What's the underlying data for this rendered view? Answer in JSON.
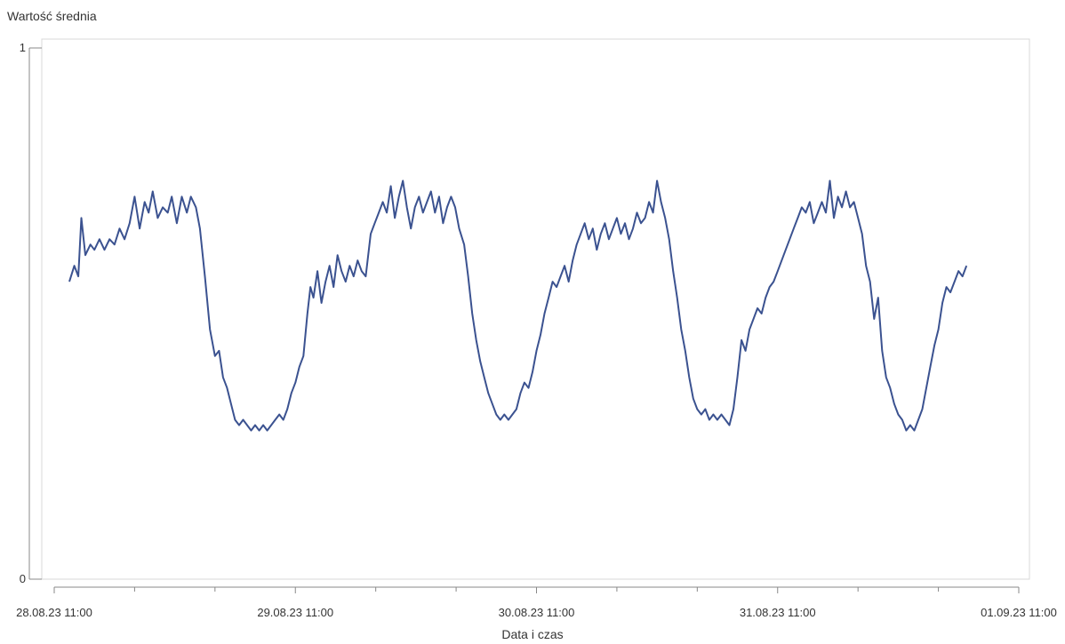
{
  "chart_data": {
    "type": "line",
    "ylabel": "Wartość średnia",
    "xlabel": "Data i czas",
    "ylim": [
      0,
      1
    ],
    "y_ticks": [
      "0",
      "1"
    ],
    "x_ticks": [
      "28.08.23 11:00",
      "29.08.23 11:00",
      "30.08.23 11:00",
      "31.08.23 11:00",
      "01.09.23 11:00"
    ],
    "xlim_hours": [
      0,
      96
    ],
    "grid": false,
    "color": "#3b5290",
    "series": [
      {
        "points": [
          [
            1.5,
            0.56
          ],
          [
            2.0,
            0.59
          ],
          [
            2.4,
            0.57
          ],
          [
            2.7,
            0.68
          ],
          [
            3.1,
            0.61
          ],
          [
            3.6,
            0.63
          ],
          [
            4.0,
            0.62
          ],
          [
            4.5,
            0.64
          ],
          [
            5.0,
            0.62
          ],
          [
            5.5,
            0.64
          ],
          [
            6.0,
            0.63
          ],
          [
            6.5,
            0.66
          ],
          [
            7.0,
            0.64
          ],
          [
            7.5,
            0.67
          ],
          [
            8.0,
            0.72
          ],
          [
            8.5,
            0.66
          ],
          [
            9.0,
            0.71
          ],
          [
            9.4,
            0.69
          ],
          [
            9.8,
            0.73
          ],
          [
            10.3,
            0.68
          ],
          [
            10.8,
            0.7
          ],
          [
            11.3,
            0.69
          ],
          [
            11.7,
            0.72
          ],
          [
            12.2,
            0.67
          ],
          [
            12.7,
            0.72
          ],
          [
            13.2,
            0.69
          ],
          [
            13.6,
            0.72
          ],
          [
            14.1,
            0.7
          ],
          [
            14.5,
            0.66
          ],
          [
            15.0,
            0.57
          ],
          [
            15.5,
            0.47
          ],
          [
            16.0,
            0.42
          ],
          [
            16.4,
            0.43
          ],
          [
            16.8,
            0.38
          ],
          [
            17.2,
            0.36
          ],
          [
            17.6,
            0.33
          ],
          [
            18.0,
            0.3
          ],
          [
            18.4,
            0.29
          ],
          [
            18.8,
            0.3
          ],
          [
            19.2,
            0.29
          ],
          [
            19.6,
            0.28
          ],
          [
            20.0,
            0.29
          ],
          [
            20.4,
            0.28
          ],
          [
            20.8,
            0.29
          ],
          [
            21.2,
            0.28
          ],
          [
            21.6,
            0.29
          ],
          [
            22.0,
            0.3
          ],
          [
            22.4,
            0.31
          ],
          [
            22.8,
            0.3
          ],
          [
            23.2,
            0.32
          ],
          [
            23.6,
            0.35
          ],
          [
            24.0,
            0.37
          ],
          [
            24.4,
            0.4
          ],
          [
            24.8,
            0.42
          ],
          [
            25.2,
            0.5
          ],
          [
            25.5,
            0.55
          ],
          [
            25.8,
            0.53
          ],
          [
            26.2,
            0.58
          ],
          [
            26.6,
            0.52
          ],
          [
            27.0,
            0.56
          ],
          [
            27.4,
            0.59
          ],
          [
            27.8,
            0.55
          ],
          [
            28.2,
            0.61
          ],
          [
            28.6,
            0.58
          ],
          [
            29.0,
            0.56
          ],
          [
            29.4,
            0.59
          ],
          [
            29.8,
            0.57
          ],
          [
            30.2,
            0.6
          ],
          [
            30.6,
            0.58
          ],
          [
            31.0,
            0.57
          ],
          [
            31.5,
            0.65
          ],
          [
            31.9,
            0.67
          ],
          [
            32.3,
            0.69
          ],
          [
            32.7,
            0.71
          ],
          [
            33.1,
            0.69
          ],
          [
            33.5,
            0.74
          ],
          [
            33.9,
            0.68
          ],
          [
            34.3,
            0.72
          ],
          [
            34.7,
            0.75
          ],
          [
            35.1,
            0.7
          ],
          [
            35.5,
            0.66
          ],
          [
            35.9,
            0.7
          ],
          [
            36.3,
            0.72
          ],
          [
            36.7,
            0.69
          ],
          [
            37.1,
            0.71
          ],
          [
            37.5,
            0.73
          ],
          [
            37.9,
            0.69
          ],
          [
            38.3,
            0.72
          ],
          [
            38.7,
            0.67
          ],
          [
            39.1,
            0.7
          ],
          [
            39.5,
            0.72
          ],
          [
            39.9,
            0.7
          ],
          [
            40.3,
            0.66
          ],
          [
            40.8,
            0.63
          ],
          [
            41.2,
            0.57
          ],
          [
            41.6,
            0.5
          ],
          [
            42.0,
            0.45
          ],
          [
            42.4,
            0.41
          ],
          [
            42.8,
            0.38
          ],
          [
            43.2,
            0.35
          ],
          [
            43.6,
            0.33
          ],
          [
            44.0,
            0.31
          ],
          [
            44.4,
            0.3
          ],
          [
            44.8,
            0.31
          ],
          [
            45.2,
            0.3
          ],
          [
            45.6,
            0.31
          ],
          [
            46.0,
            0.32
          ],
          [
            46.4,
            0.35
          ],
          [
            46.8,
            0.37
          ],
          [
            47.2,
            0.36
          ],
          [
            47.6,
            0.39
          ],
          [
            48.0,
            0.43
          ],
          [
            48.4,
            0.46
          ],
          [
            48.8,
            0.5
          ],
          [
            49.2,
            0.53
          ],
          [
            49.6,
            0.56
          ],
          [
            50.0,
            0.55
          ],
          [
            50.4,
            0.57
          ],
          [
            50.8,
            0.59
          ],
          [
            51.2,
            0.56
          ],
          [
            51.6,
            0.6
          ],
          [
            52.0,
            0.63
          ],
          [
            52.4,
            0.65
          ],
          [
            52.8,
            0.67
          ],
          [
            53.2,
            0.64
          ],
          [
            53.6,
            0.66
          ],
          [
            54.0,
            0.62
          ],
          [
            54.4,
            0.65
          ],
          [
            54.8,
            0.67
          ],
          [
            55.2,
            0.64
          ],
          [
            55.6,
            0.66
          ],
          [
            56.0,
            0.68
          ],
          [
            56.4,
            0.65
          ],
          [
            56.8,
            0.67
          ],
          [
            57.2,
            0.64
          ],
          [
            57.6,
            0.66
          ],
          [
            58.0,
            0.69
          ],
          [
            58.4,
            0.67
          ],
          [
            58.8,
            0.68
          ],
          [
            59.2,
            0.71
          ],
          [
            59.6,
            0.69
          ],
          [
            60.0,
            0.75
          ],
          [
            60.4,
            0.71
          ],
          [
            60.8,
            0.68
          ],
          [
            61.2,
            0.64
          ],
          [
            61.6,
            0.58
          ],
          [
            62.0,
            0.53
          ],
          [
            62.4,
            0.47
          ],
          [
            62.8,
            0.43
          ],
          [
            63.2,
            0.38
          ],
          [
            63.6,
            0.34
          ],
          [
            64.0,
            0.32
          ],
          [
            64.4,
            0.31
          ],
          [
            64.8,
            0.32
          ],
          [
            65.2,
            0.3
          ],
          [
            65.6,
            0.31
          ],
          [
            66.0,
            0.3
          ],
          [
            66.4,
            0.31
          ],
          [
            66.8,
            0.3
          ],
          [
            67.2,
            0.29
          ],
          [
            67.6,
            0.32
          ],
          [
            68.0,
            0.38
          ],
          [
            68.4,
            0.45
          ],
          [
            68.8,
            0.43
          ],
          [
            69.2,
            0.47
          ],
          [
            69.6,
            0.49
          ],
          [
            70.0,
            0.51
          ],
          [
            70.4,
            0.5
          ],
          [
            70.8,
            0.53
          ],
          [
            71.2,
            0.55
          ],
          [
            71.6,
            0.56
          ],
          [
            72.0,
            0.58
          ],
          [
            72.4,
            0.6
          ],
          [
            72.8,
            0.62
          ],
          [
            73.2,
            0.64
          ],
          [
            73.6,
            0.66
          ],
          [
            74.0,
            0.68
          ],
          [
            74.4,
            0.7
          ],
          [
            74.8,
            0.69
          ],
          [
            75.2,
            0.71
          ],
          [
            75.6,
            0.67
          ],
          [
            76.0,
            0.69
          ],
          [
            76.4,
            0.71
          ],
          [
            76.8,
            0.69
          ],
          [
            77.2,
            0.75
          ],
          [
            77.6,
            0.68
          ],
          [
            78.0,
            0.72
          ],
          [
            78.4,
            0.7
          ],
          [
            78.8,
            0.73
          ],
          [
            79.2,
            0.7
          ],
          [
            79.6,
            0.71
          ],
          [
            80.0,
            0.68
          ],
          [
            80.4,
            0.65
          ],
          [
            80.8,
            0.59
          ],
          [
            81.2,
            0.56
          ],
          [
            81.6,
            0.49
          ],
          [
            82.0,
            0.53
          ],
          [
            82.4,
            0.43
          ],
          [
            82.8,
            0.38
          ],
          [
            83.2,
            0.36
          ],
          [
            83.6,
            0.33
          ],
          [
            84.0,
            0.31
          ],
          [
            84.4,
            0.3
          ],
          [
            84.8,
            0.28
          ],
          [
            85.2,
            0.29
          ],
          [
            85.6,
            0.28
          ],
          [
            86.0,
            0.3
          ],
          [
            86.4,
            0.32
          ],
          [
            86.8,
            0.36
          ],
          [
            87.2,
            0.4
          ],
          [
            87.6,
            0.44
          ],
          [
            88.0,
            0.47
          ],
          [
            88.4,
            0.52
          ],
          [
            88.8,
            0.55
          ],
          [
            89.2,
            0.54
          ],
          [
            89.6,
            0.56
          ],
          [
            90.0,
            0.58
          ],
          [
            90.4,
            0.57
          ],
          [
            90.8,
            0.59
          ]
        ]
      }
    ]
  }
}
